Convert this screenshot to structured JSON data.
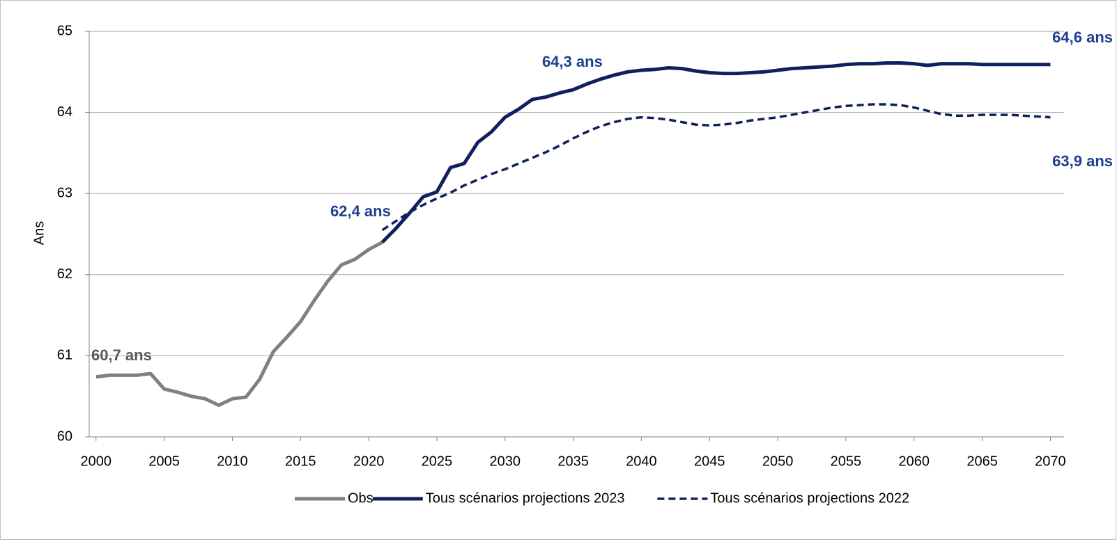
{
  "chart_data": {
    "type": "line",
    "y_label": "Ans",
    "x": [
      2000,
      2001,
      2002,
      2003,
      2004,
      2005,
      2006,
      2007,
      2008,
      2009,
      2010,
      2011,
      2012,
      2013,
      2014,
      2015,
      2016,
      2017,
      2018,
      2019,
      2020,
      2021,
      2022,
      2023,
      2024,
      2025,
      2026,
      2027,
      2028,
      2029,
      2030,
      2031,
      2032,
      2033,
      2034,
      2035,
      2036,
      2037,
      2038,
      2039,
      2040,
      2041,
      2042,
      2043,
      2044,
      2045,
      2046,
      2047,
      2048,
      2049,
      2050,
      2051,
      2052,
      2053,
      2054,
      2055,
      2056,
      2057,
      2058,
      2059,
      2060,
      2061,
      2062,
      2063,
      2064,
      2065,
      2066,
      2067,
      2068,
      2069,
      2070
    ],
    "series": [
      {
        "name": "Obs",
        "color": "#808080",
        "line_style": "solid",
        "values": [
          60.74,
          60.76,
          60.76,
          60.76,
          60.78,
          60.59,
          60.55,
          60.5,
          60.47,
          60.39,
          60.47,
          60.49,
          60.71,
          61.05,
          61.23,
          61.42,
          61.68,
          61.92,
          62.12,
          62.19,
          62.31,
          62.4,
          null,
          null,
          null,
          null,
          null,
          null,
          null,
          null,
          null,
          null,
          null,
          null,
          null,
          null,
          null,
          null,
          null,
          null,
          null,
          null,
          null,
          null,
          null,
          null,
          null,
          null,
          null,
          null,
          null,
          null,
          null,
          null,
          null,
          null,
          null,
          null,
          null,
          null,
          null,
          null,
          null,
          null,
          null,
          null,
          null,
          null,
          null,
          null,
          null
        ]
      },
      {
        "name": "Tous scénarios projections 2023",
        "color": "#10205e",
        "line_style": "solid",
        "values": [
          null,
          null,
          null,
          null,
          null,
          null,
          null,
          null,
          null,
          null,
          null,
          null,
          null,
          null,
          null,
          null,
          null,
          null,
          null,
          null,
          null,
          62.4,
          62.57,
          62.76,
          62.96,
          63.02,
          63.32,
          63.37,
          63.63,
          63.76,
          63.94,
          64.04,
          64.16,
          64.19,
          64.24,
          64.28,
          64.35,
          64.41,
          64.46,
          64.5,
          64.52,
          64.53,
          64.55,
          64.54,
          64.51,
          64.49,
          64.48,
          64.48,
          64.49,
          64.5,
          64.52,
          64.54,
          64.55,
          64.56,
          64.57,
          64.59,
          64.6,
          64.6,
          64.61,
          64.61,
          64.6,
          64.58,
          64.6,
          64.6,
          64.6,
          64.59,
          64.59,
          64.59,
          64.59,
          64.59,
          64.59
        ]
      },
      {
        "name": "Tous scénarios projections 2022",
        "color": "#10205e",
        "line_style": "dashed",
        "values": [
          null,
          null,
          null,
          null,
          null,
          null,
          null,
          null,
          null,
          null,
          null,
          null,
          null,
          null,
          null,
          null,
          null,
          null,
          null,
          null,
          null,
          62.55,
          62.66,
          62.77,
          62.86,
          62.94,
          63.01,
          63.1,
          63.17,
          63.24,
          63.3,
          63.37,
          63.44,
          63.51,
          63.59,
          63.68,
          63.76,
          63.83,
          63.88,
          63.92,
          63.94,
          63.93,
          63.91,
          63.88,
          63.85,
          63.84,
          63.85,
          63.87,
          63.9,
          63.92,
          63.94,
          63.97,
          64.0,
          64.03,
          64.06,
          64.08,
          64.09,
          64.1,
          64.1,
          64.09,
          64.06,
          64.02,
          63.98,
          63.96,
          63.96,
          63.97,
          63.97,
          63.97,
          63.96,
          63.95,
          63.94
        ]
      }
    ],
    "annotations": [
      {
        "text": "60,7 ans",
        "color": "#595959"
      },
      {
        "text": "62,4 ans",
        "color": "#1f3f8f"
      },
      {
        "text": "64,3 ans",
        "color": "#1f3f8f"
      },
      {
        "text": "64,6 ans",
        "color": "#1f3f8f"
      },
      {
        "text": "63,9 ans",
        "color": "#1f3f8f"
      }
    ],
    "xlim": [
      1999.5,
      2071
    ],
    "xticks": [
      2000,
      2005,
      2010,
      2015,
      2020,
      2025,
      2030,
      2035,
      2040,
      2045,
      2050,
      2055,
      2060,
      2065,
      2070
    ],
    "ylim": [
      60,
      65
    ],
    "yticks": [
      60,
      61,
      62,
      63,
      64,
      65
    ],
    "grid": true,
    "legend": "bottom"
  }
}
